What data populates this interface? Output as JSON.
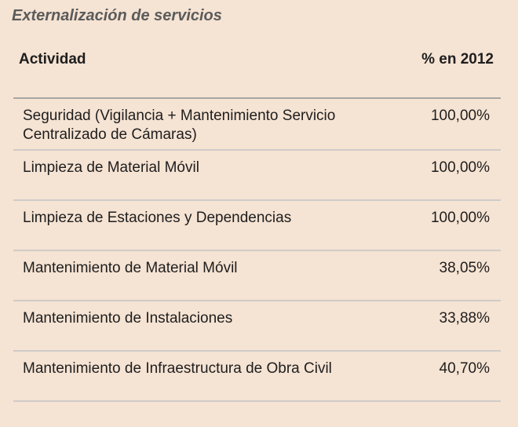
{
  "title": "Externalización de servicios",
  "table": {
    "headers": {
      "actividad": "Actividad",
      "porcentaje": "% en 2012"
    },
    "rows": [
      {
        "actividad": "Seguridad (Vigilancia + Mantenimiento Servicio Centralizado de Cámaras)",
        "valor": "100,00%"
      },
      {
        "actividad": "Limpieza de Material Móvil",
        "valor": "100,00%"
      },
      {
        "actividad": "Limpieza de Estaciones y Dependencias",
        "valor": "100,00%"
      },
      {
        "actividad": "Mantenimiento de Material Móvil",
        "valor": "38,05%"
      },
      {
        "actividad": "Mantenimiento de Instalaciones",
        "valor": "33,88%"
      },
      {
        "actividad": "Mantenimiento de Infraestructura de Obra Civil",
        "valor": "40,70%"
      }
    ]
  }
}
